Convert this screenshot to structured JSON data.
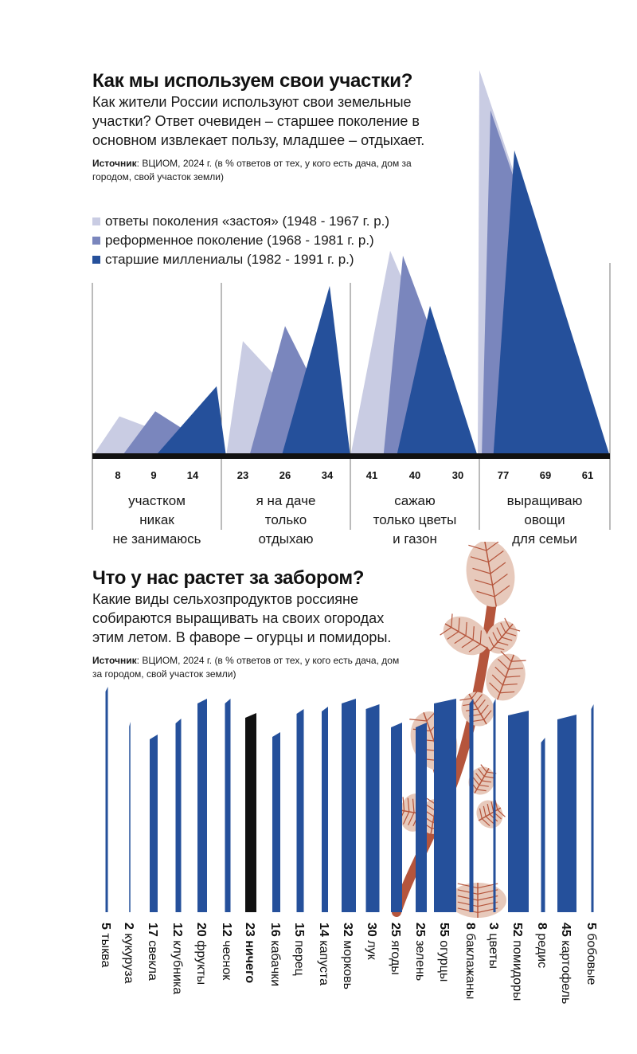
{
  "section1": {
    "title": "Как мы используем свои участки?",
    "lead_lines": [
      "Как жители России используют свои земельные",
      "участки? Ответ очевиден – старшее поколение в",
      "основном извлекает пользу, младшее – отдыхает."
    ],
    "source_label": "Источник",
    "source_lines": [
      ": ВЦИОМ, 2024 г. (в % ответов от тех, у кого есть дача, дом за",
      "городом, свой участок земли)"
    ]
  },
  "section2": {
    "title": "Что у нас растет за забором?",
    "lead_lines": [
      "Какие виды сельхозпродуктов россияне",
      "собираются выращивать на своих огородах",
      "этим летом. В фаворе – огурцы и помидоры."
    ],
    "source_label": "Источник",
    "source_lines": [
      ": ВЦИОМ, 2024 г. (в % ответов от тех, у кого есть дача, дом",
      "за городом, свой участок земли)"
    ]
  },
  "colors": {
    "gen1": "#c9cce3",
    "gen2": "#7a86bd",
    "gen3": "#25509b",
    "bar": "#25509b",
    "highlight": "#111111",
    "axis": "#111111",
    "leaf": "#e7c9bb",
    "leaf_vein": "#b5553c",
    "stem": "#b5553c"
  },
  "chart_data": [
    {
      "type": "area",
      "series": [
        {
          "name": "ответы поколения «застоя» (1948 - 1967 г. р.)",
          "values": [
            8,
            23,
            41,
            77
          ]
        },
        {
          "name": "реформенное поколение (1968 - 1981 г. р.)",
          "values": [
            9,
            26,
            40,
            69
          ]
        },
        {
          "name": "старшие миллениалы (1982 - 1991 г. р.)",
          "values": [
            14,
            34,
            30,
            61
          ]
        }
      ],
      "categories": [
        [
          "участком",
          "никак",
          "не занимаюсь"
        ],
        [
          "я на даче",
          "только",
          "отдыхаю"
        ],
        [
          "сажаю",
          "только цветы",
          "и газон"
        ],
        [
          "выращиваю",
          "овощи",
          "для семьи"
        ]
      ],
      "legend_position": "top-left"
    },
    {
      "type": "bar",
      "categories": [
        "тыква",
        "кукуруза",
        "свекла",
        "клубника",
        "фрукты",
        "чеснок",
        "ничего",
        "кабачки",
        "перец",
        "капуста",
        "морковь",
        "лук",
        "ягоды",
        "зелень",
        "огурцы",
        "баклажаны",
        "цветы",
        "помидоры",
        "редис",
        "картофель",
        "бобовые"
      ],
      "values": [
        5,
        2,
        17,
        12,
        20,
        12,
        23,
        16,
        15,
        14,
        32,
        30,
        25,
        25,
        55,
        8,
        3,
        52,
        8,
        45,
        5
      ],
      "highlight_index": 6
    }
  ]
}
